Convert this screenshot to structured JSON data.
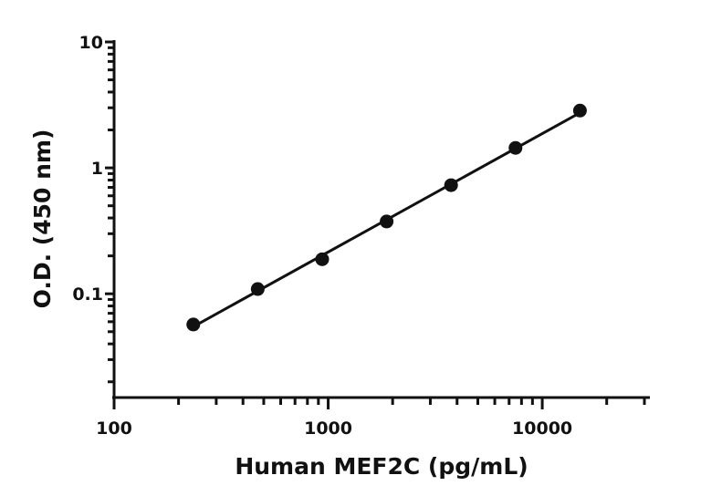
{
  "chart_data": {
    "type": "scatter",
    "title": "",
    "xlabel": "Human MEF2C (pg/mL)",
    "ylabel": "O.D. (450 nm)",
    "xscale": "log",
    "yscale": "log",
    "xlim": [
      100,
      30000
    ],
    "ylim": [
      0.015,
      10
    ],
    "x_ticks": [
      {
        "value": 100,
        "label": "100"
      },
      {
        "value": 1000,
        "label": "1000"
      },
      {
        "value": 10000,
        "label": "10000"
      }
    ],
    "y_ticks": [
      {
        "value": 0.1,
        "label": "0.1"
      },
      {
        "value": 1,
        "label": "1"
      },
      {
        "value": 10,
        "label": "10"
      }
    ],
    "grid": false,
    "legend": "none",
    "fit_line": true,
    "colors": {
      "marker": "#111111",
      "line": "#111111",
      "axis": "#111111"
    },
    "series": [
      {
        "x": [
          234.4,
          468.75,
          937.5,
          1875,
          3750,
          7500,
          15000
        ],
        "y": [
          0.057,
          0.109,
          0.188,
          0.375,
          0.729,
          1.44,
          2.85
        ]
      }
    ]
  }
}
